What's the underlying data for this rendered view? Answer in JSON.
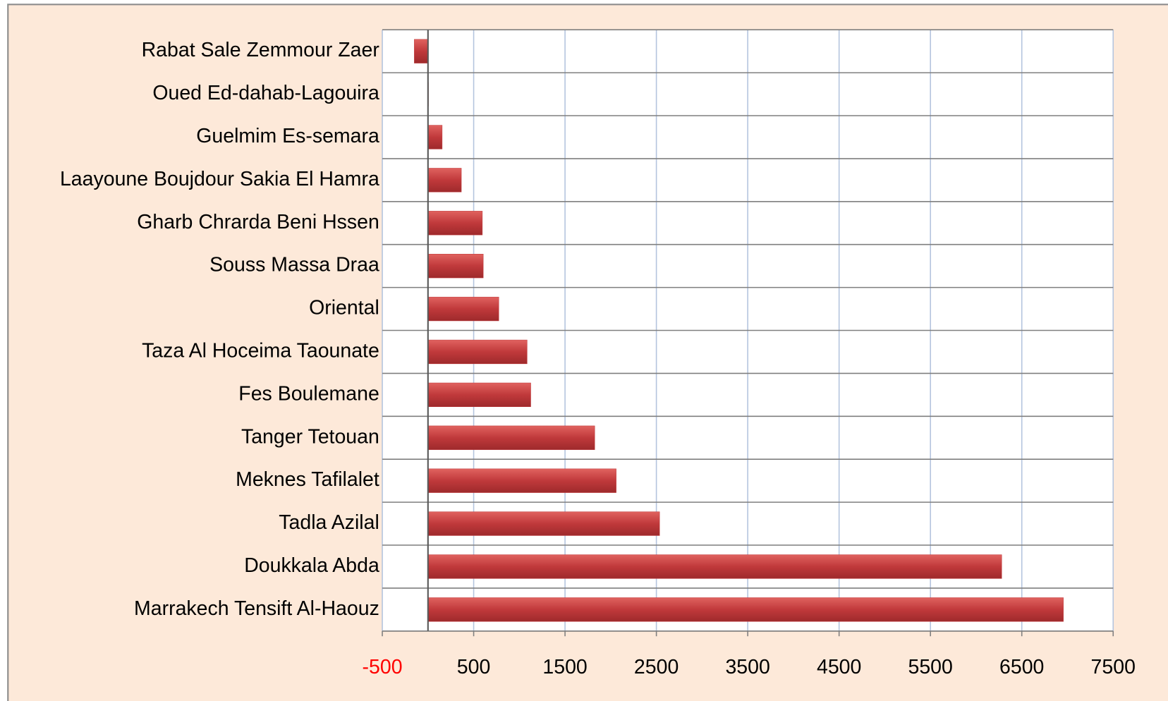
{
  "chart_data": {
    "type": "bar",
    "orientation": "horizontal",
    "categories": [
      "Rabat Sale Zemmour Zaer",
      "Oued Ed-dahab-Lagouira",
      "Guelmim Es-semara",
      "Laayoune Boujdour Sakia El Hamra",
      "Gharb Chrarda Beni Hssen",
      "Souss Massa Draa",
      "Oriental",
      "Taza Al Hoceima Taounate",
      "Fes Boulemane",
      "Tanger Tetouan",
      "Meknes Tafilalet",
      "Tadla Azilal",
      "Doukkala Abda",
      "Marrakech Tensift Al-Haouz"
    ],
    "values": [
      -150,
      5,
      155,
      365,
      595,
      605,
      775,
      1085,
      1125,
      1825,
      2060,
      2535,
      6280,
      6955
    ],
    "color": "#c0393b",
    "xlim": [
      -500,
      7500
    ],
    "xticks": [
      -500,
      500,
      1500,
      2500,
      3500,
      4500,
      5500,
      6500,
      7500
    ],
    "negative_tick_color": "#ff0000",
    "grid": true
  }
}
